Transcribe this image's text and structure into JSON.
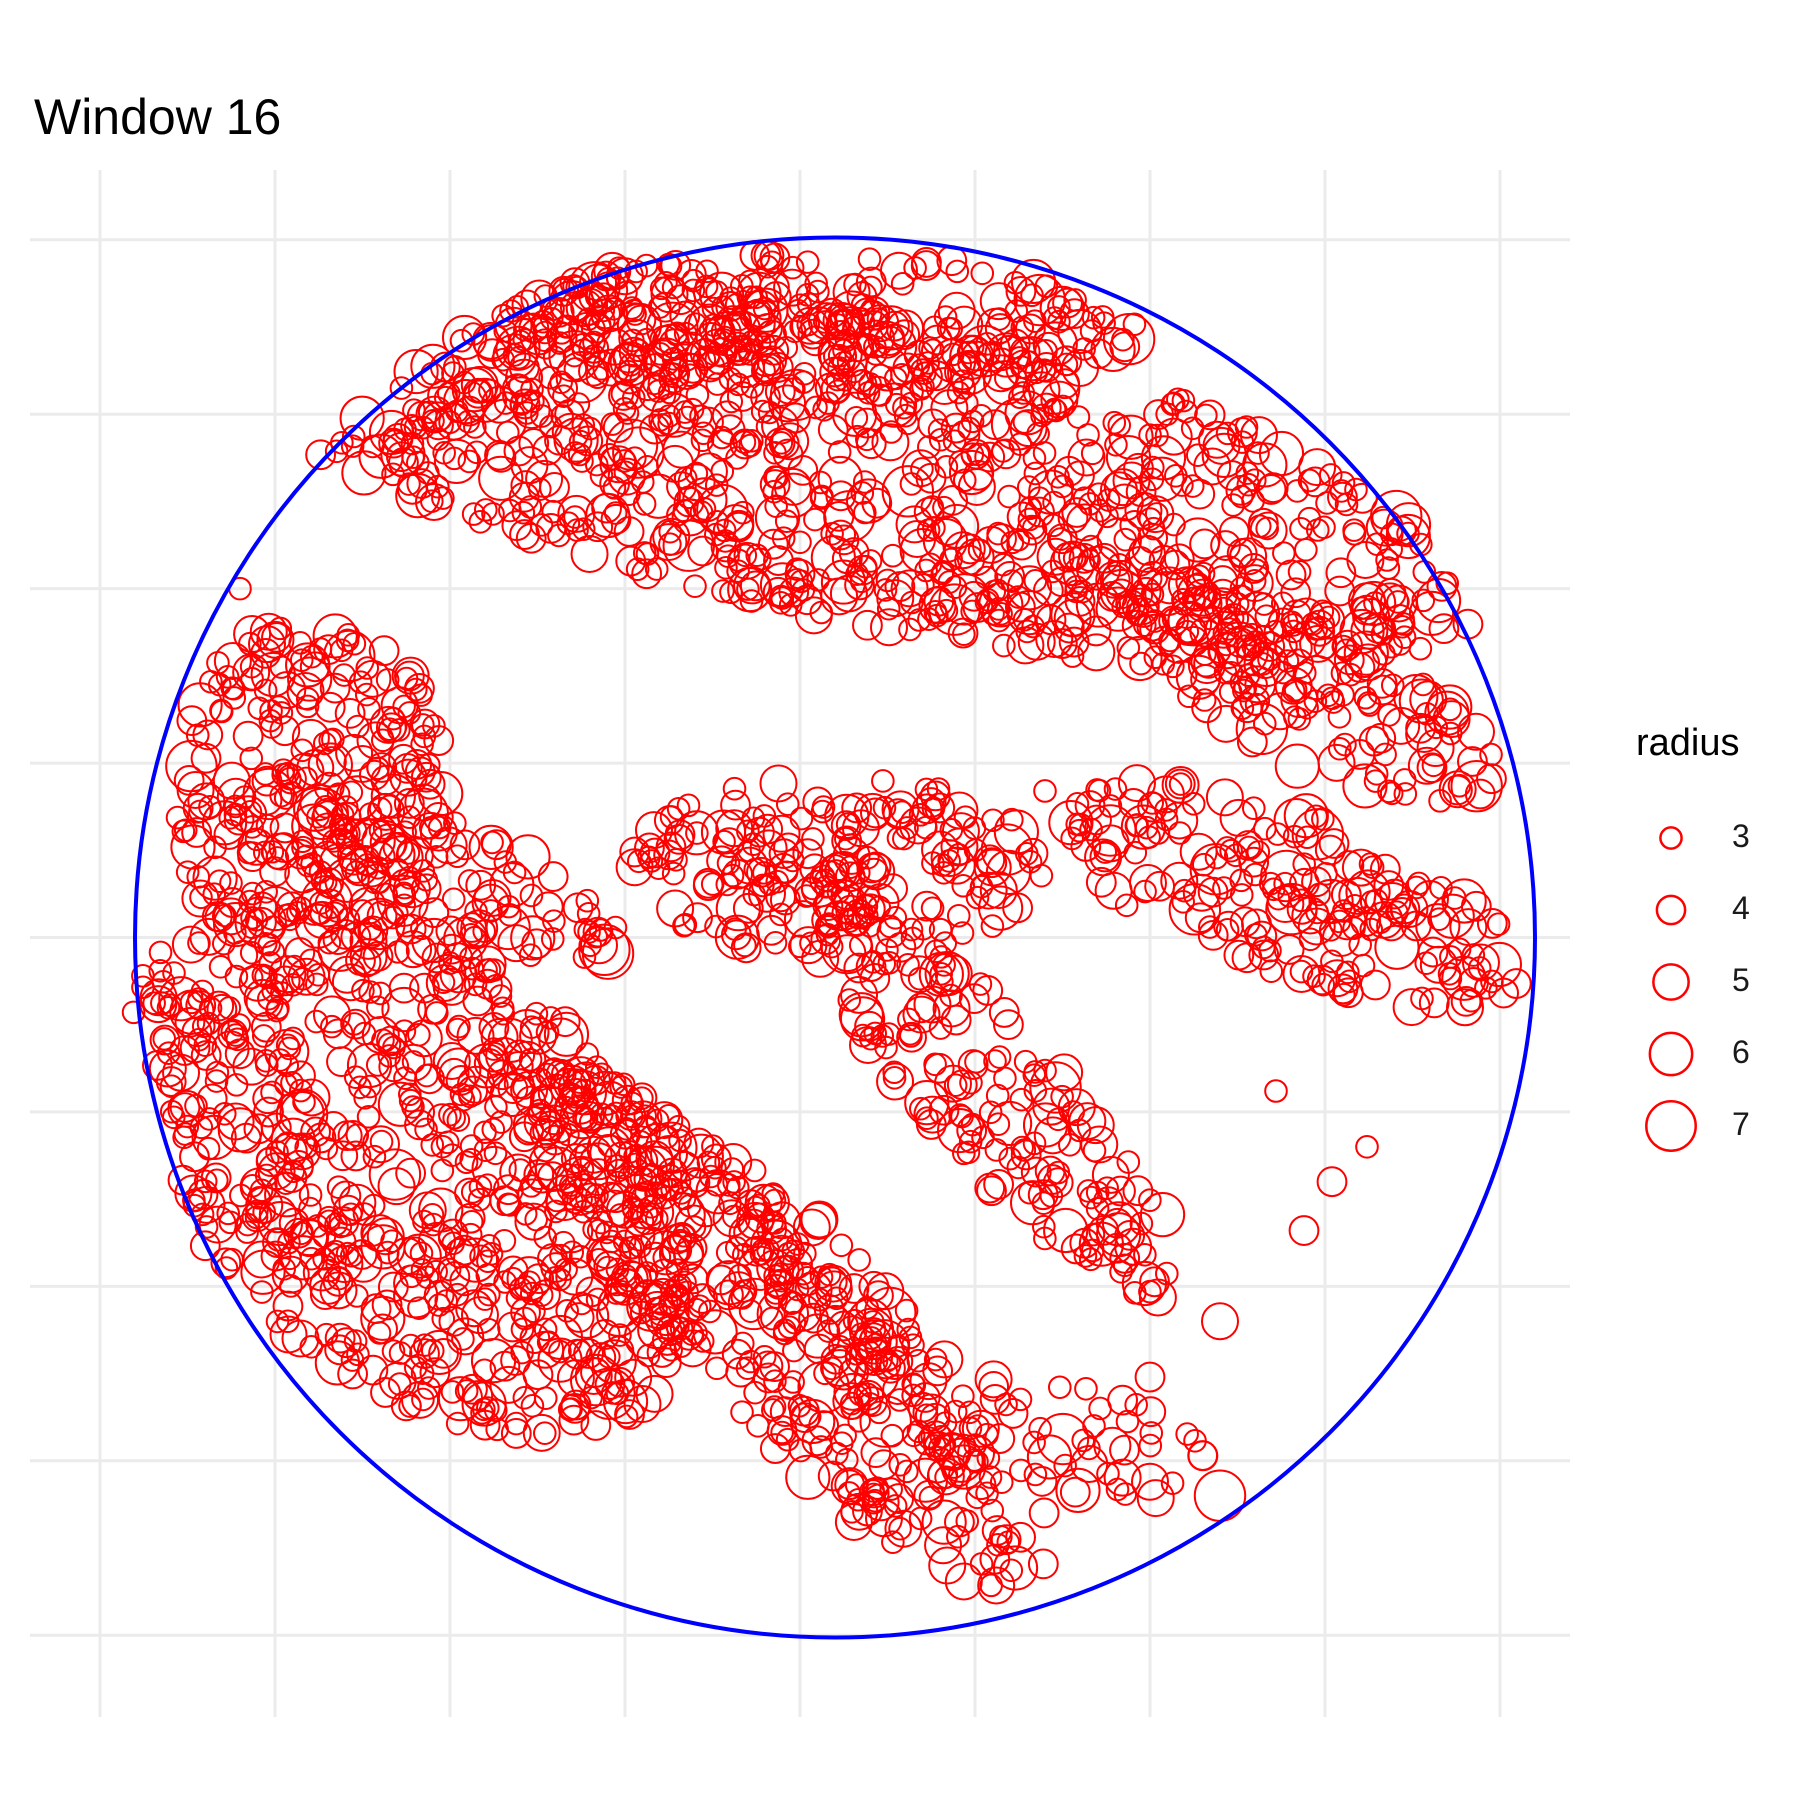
{
  "chart_data": {
    "type": "scatter",
    "title": "Window 16",
    "xlabel": "",
    "ylabel": "",
    "grid": true,
    "axis_tick_labels": false,
    "colors": {
      "points": "#ff0000",
      "window": "#0000ff",
      "grid": "#ebebeb",
      "background": "#ffffff"
    },
    "xlim": [
      -1.1,
      1.1
    ],
    "ylim": [
      -1.1,
      1.1
    ],
    "x_gridlines": [
      -1.0,
      -0.75,
      -0.5,
      -0.25,
      0.0,
      0.25,
      0.5,
      0.75,
      1.0
    ],
    "y_gridlines": [
      -1.0,
      -0.75,
      -0.5,
      -0.25,
      0.0,
      0.25,
      0.5,
      0.75,
      1.0
    ],
    "window": {
      "shape": "circle",
      "center": [
        0.05,
        0.0
      ],
      "radius": 1.0
    },
    "legend": {
      "title": "radius",
      "position": "right",
      "values": [
        3,
        4,
        5,
        6,
        7
      ]
    },
    "series": [
      {
        "marker": "open-circle",
        "point_count_approx": 4000,
        "sample_points": [
          {
            "x": -0.8,
            "y": 0.5,
            "r": 3
          },
          {
            "x": 0.95,
            "y": -0.1,
            "r": 5
          },
          {
            "x": 0.6,
            "y": -0.8,
            "r": 7
          },
          {
            "x": 0.5,
            "y": -0.78,
            "r": 5
          },
          {
            "x": 0.68,
            "y": -0.22,
            "r": 3
          },
          {
            "x": 0.76,
            "y": -0.35,
            "r": 4
          },
          {
            "x": 0.81,
            "y": -0.3,
            "r": 3
          },
          {
            "x": 0.35,
            "y": 0.21,
            "r": 3
          },
          {
            "x": 0.72,
            "y": -0.42,
            "r": 4
          },
          {
            "x": 0.6,
            "y": -0.55,
            "r": 5
          },
          {
            "x": 0.5,
            "y": -0.63,
            "r": 4
          },
          {
            "x": 0.42,
            "y": -0.7,
            "r": 3
          }
        ]
      }
    ],
    "point_regions": [
      {
        "id": "top-band",
        "cx": 0.05,
        "cy": 0.68,
        "a": 0.95,
        "b": 0.22,
        "angle": -12,
        "density": 1.0
      },
      {
        "id": "top-cap",
        "cx": 0.0,
        "cy": 0.88,
        "a": 0.5,
        "b": 0.1,
        "angle": 0,
        "density": 1.0
      },
      {
        "id": "right-upper",
        "cx": 0.72,
        "cy": 0.35,
        "a": 0.3,
        "b": 0.1,
        "angle": -25,
        "density": 0.9
      },
      {
        "id": "right-middle",
        "cx": 0.7,
        "cy": 0.06,
        "a": 0.35,
        "b": 0.12,
        "angle": -20,
        "density": 0.9
      },
      {
        "id": "center-blob",
        "cx": 0.05,
        "cy": 0.1,
        "a": 0.3,
        "b": 0.13,
        "angle": 0,
        "density": 0.95
      },
      {
        "id": "center-diagonal",
        "cx": 0.27,
        "cy": -0.22,
        "a": 0.4,
        "b": 0.1,
        "angle": -48,
        "density": 0.9
      },
      {
        "id": "left-top",
        "cx": -0.7,
        "cy": 0.2,
        "a": 0.2,
        "b": 0.26,
        "angle": 0,
        "density": 0.9
      },
      {
        "id": "left-middle",
        "cx": -0.55,
        "cy": 0.1,
        "a": 0.32,
        "b": 0.08,
        "angle": -20,
        "density": 0.8
      },
      {
        "id": "left-lower",
        "cx": -0.55,
        "cy": -0.33,
        "a": 0.48,
        "b": 0.3,
        "angle": -40,
        "density": 1.0
      },
      {
        "id": "bottom-diagonal",
        "cx": -0.05,
        "cy": -0.55,
        "a": 0.52,
        "b": 0.12,
        "angle": -48,
        "density": 0.95
      },
      {
        "id": "bottom-diagonal-2",
        "cx": 0.12,
        "cy": -0.6,
        "a": 0.4,
        "b": 0.07,
        "angle": -50,
        "density": 0.8
      },
      {
        "id": "bottom-right-sparse",
        "cx": 0.4,
        "cy": -0.72,
        "a": 0.2,
        "b": 0.08,
        "angle": -15,
        "density": 0.5
      }
    ]
  }
}
